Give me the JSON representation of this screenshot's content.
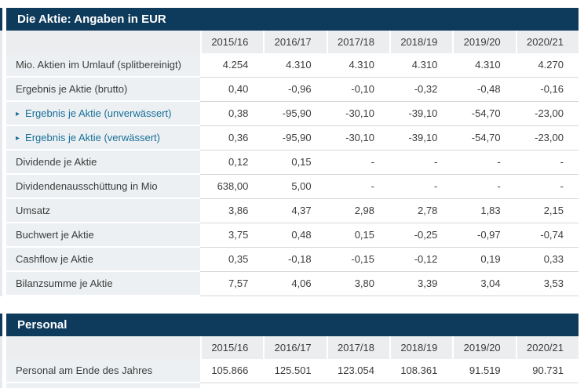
{
  "colors": {
    "section_header_bg": "#0e3a5c",
    "column_header_bg": "#ebedee",
    "label_cell_bg": "#edf0f3",
    "separator_line": "#d4d7d8",
    "body_text": "#3c3c3b",
    "link_text": "#186f97"
  },
  "sections": [
    {
      "title": "Die Aktie: Angaben in EUR",
      "years": [
        "2015/16",
        "2016/17",
        "2017/18",
        "2018/19",
        "2019/20",
        "2020/21"
      ],
      "rows": [
        {
          "label": "Mio. Aktien im Umlauf (splitbereinigt)",
          "link": false,
          "values": [
            "4.254",
            "4.310",
            "4.310",
            "4.310",
            "4.310",
            "4.270"
          ]
        },
        {
          "label": "Ergebnis je Aktie (brutto)",
          "link": false,
          "values": [
            "0,40",
            "-0,96",
            "-0,10",
            "-0,32",
            "-0,48",
            "-0,16"
          ]
        },
        {
          "label": "Ergebnis je Aktie (unverwässert)",
          "link": true,
          "values": [
            "0,38",
            "-95,90",
            "-30,10",
            "-39,10",
            "-54,70",
            "-23,00"
          ]
        },
        {
          "label": "Ergebnis je Aktie (verwässert)",
          "link": true,
          "values": [
            "0,36",
            "-95,90",
            "-30,10",
            "-39,10",
            "-54,70",
            "-23,00"
          ]
        },
        {
          "label": "Dividende je Aktie",
          "link": false,
          "values": [
            "0,12",
            "0,15",
            "-",
            "-",
            "-",
            "-"
          ]
        },
        {
          "label": "Dividendenausschüttung in Mio",
          "link": false,
          "values": [
            "638,00",
            "5,00",
            "-",
            "-",
            "-",
            "-"
          ]
        },
        {
          "label": "Umsatz",
          "link": false,
          "values": [
            "3,86",
            "4,37",
            "2,98",
            "2,78",
            "1,83",
            "2,15"
          ]
        },
        {
          "label": "Buchwert je Aktie",
          "link": false,
          "values": [
            "3,75",
            "0,48",
            "0,15",
            "-0,25",
            "-0,97",
            "-0,74"
          ]
        },
        {
          "label": "Cashflow je Aktie",
          "link": false,
          "values": [
            "0,35",
            "-0,18",
            "-0,15",
            "-0,12",
            "0,19",
            "0,33"
          ]
        },
        {
          "label": "Bilanzsumme je Aktie",
          "link": false,
          "values": [
            "7,57",
            "4,06",
            "3,80",
            "3,39",
            "3,04",
            "3,53"
          ]
        }
      ],
      "partial_next_row": false
    },
    {
      "title": "Personal",
      "years": [
        "2015/16",
        "2016/17",
        "2017/18",
        "2018/19",
        "2019/20",
        "2020/21"
      ],
      "rows": [
        {
          "label": "Personal am Ende des Jahres",
          "link": false,
          "values": [
            "105.866",
            "125.501",
            "123.054",
            "108.361",
            "91.519",
            "90.731"
          ]
        }
      ],
      "partial_next_row": true
    }
  ]
}
